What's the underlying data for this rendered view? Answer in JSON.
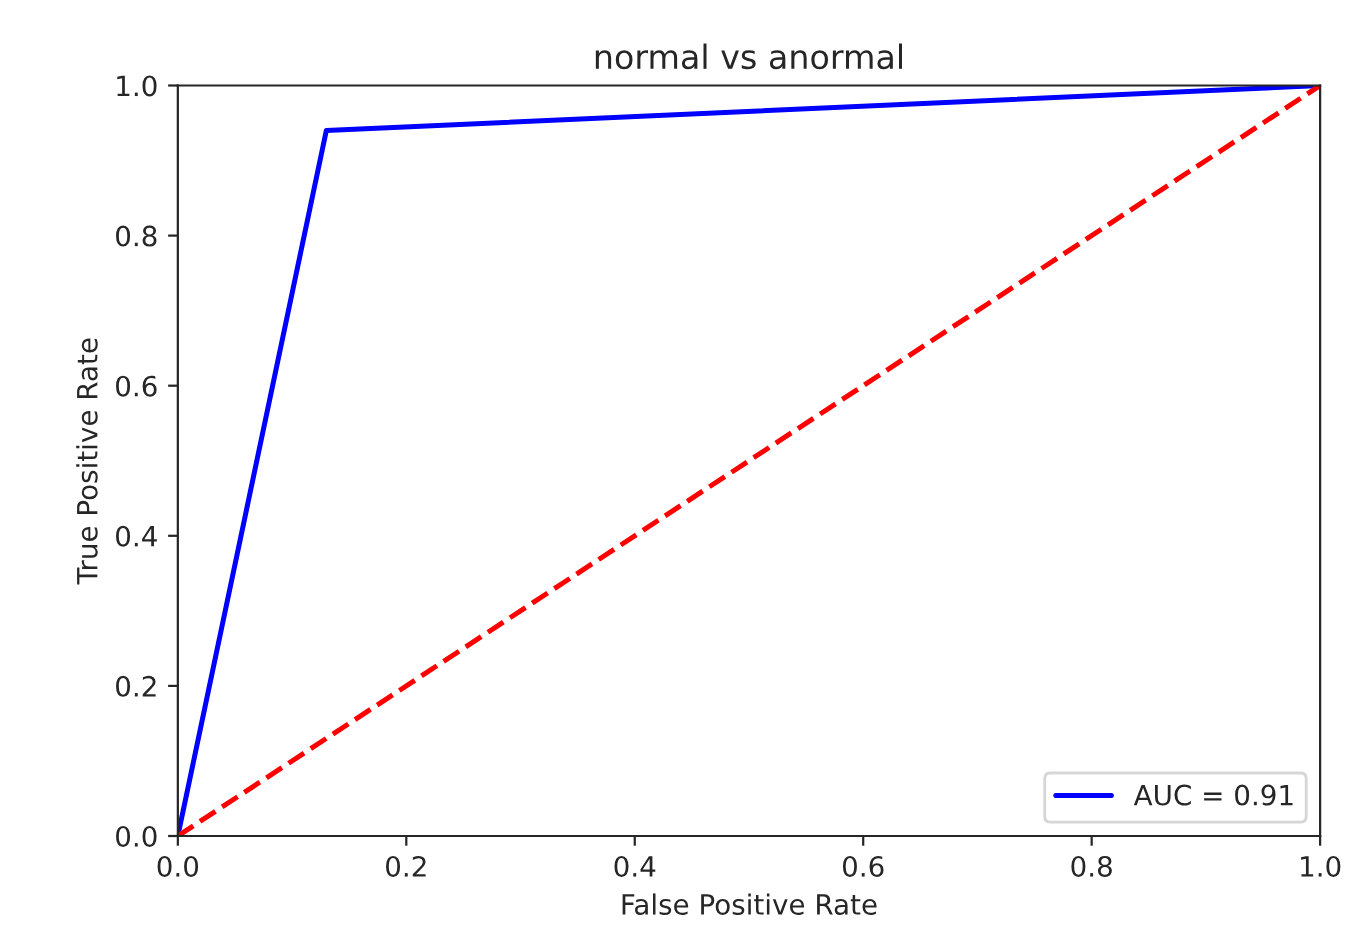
{
  "chart_data": {
    "type": "line",
    "title": "normal vs anormal",
    "xlabel": "False Positive Rate",
    "ylabel": "True Positive Rate",
    "series": [
      {
        "name": "AUC = 0.91",
        "color": "#0000ff",
        "x": [
          0,
          0.13,
          1
        ],
        "values": [
          0,
          0.94,
          1
        ],
        "line_style": "solid"
      },
      {
        "color": "#ff0000",
        "x": [
          0,
          1
        ],
        "values": [
          0,
          1
        ],
        "line_style": "dashed"
      }
    ],
    "xlim": [
      0,
      1
    ],
    "ylim": [
      0,
      1
    ],
    "xticks": [
      {
        "value": 0,
        "label": "0.0"
      },
      0.2,
      0.4,
      0.6,
      0.8,
      {
        "value": 1,
        "label": "1.0"
      }
    ],
    "yticks": [
      {
        "value": 0,
        "label": "0.0"
      },
      0.2,
      0.4,
      0.6,
      0.8,
      {
        "value": 1,
        "label": "1.0"
      }
    ],
    "legend": "bottom right",
    "grid": false,
    "marker": "none"
  }
}
